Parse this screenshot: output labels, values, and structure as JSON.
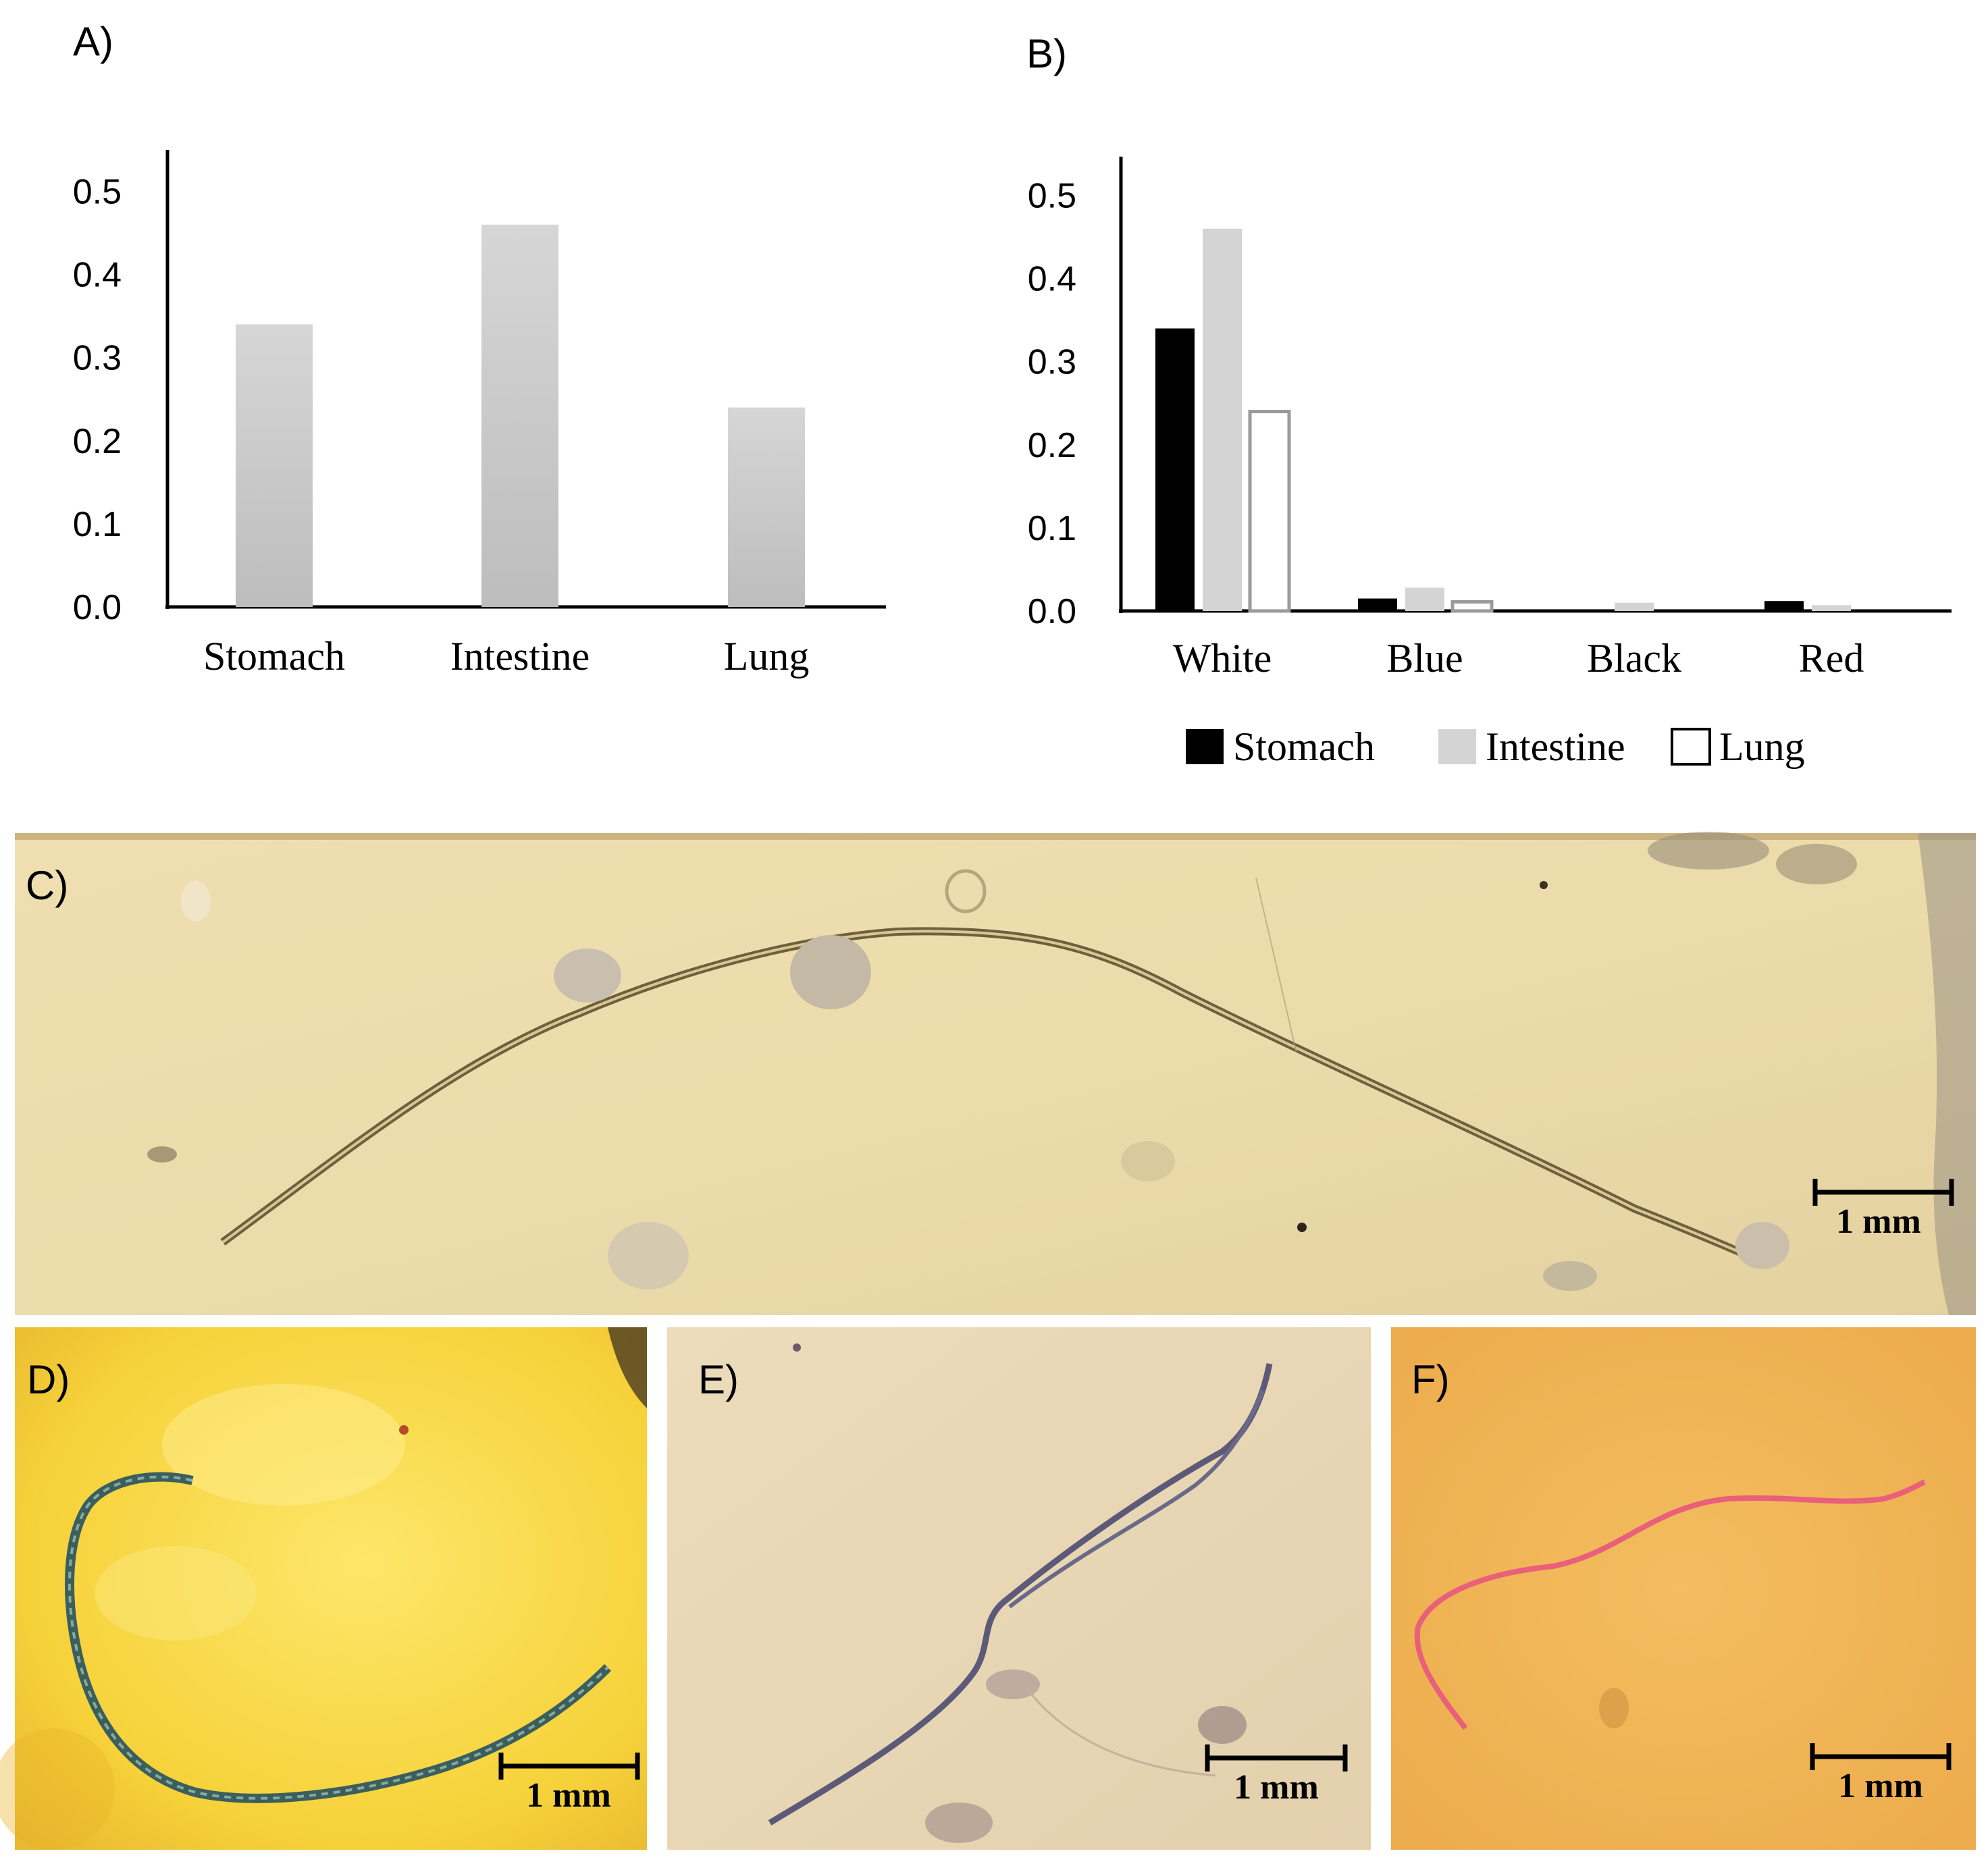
{
  "panel_labels": {
    "a": "A)",
    "b": "B)",
    "c": "C)",
    "d": "D)",
    "e": "E)",
    "f": "F)"
  },
  "chart_data": [
    {
      "panel": "A)",
      "type": "bar",
      "categories": [
        "Stomach",
        "Intestine",
        "Lung"
      ],
      "values": [
        0.34,
        0.46,
        0.24
      ],
      "yticks": [
        "0.0",
        "0.1",
        "0.2",
        "0.3",
        "0.4",
        "0.5"
      ],
      "ylim": [
        0,
        0.55
      ],
      "grid": false,
      "colors": {
        "bar": "#c8c8c8"
      }
    },
    {
      "panel": "B)",
      "type": "bar",
      "categories": [
        "White",
        "Blue",
        "Black",
        "Red"
      ],
      "series": [
        {
          "name": "Stomach",
          "values": [
            0.34,
            0.015,
            0.0,
            0.012
          ],
          "color": "#000000"
        },
        {
          "name": "Intestine",
          "values": [
            0.46,
            0.028,
            0.01,
            0.007
          ],
          "color": "#d4d4d4"
        },
        {
          "name": "Lung",
          "values": [
            0.24,
            0.011,
            0.0,
            0.0
          ],
          "color": "#ffffff"
        }
      ],
      "yticks": [
        "0.0",
        "0.1",
        "0.2",
        "0.3",
        "0.4",
        "0.5"
      ],
      "ylim": [
        0,
        0.55
      ],
      "grid": false,
      "legend_position": "bottom"
    }
  ],
  "scale_bars": {
    "c": "1 mm",
    "d": "1 mm",
    "e": "1 mm",
    "f": "1 mm"
  }
}
